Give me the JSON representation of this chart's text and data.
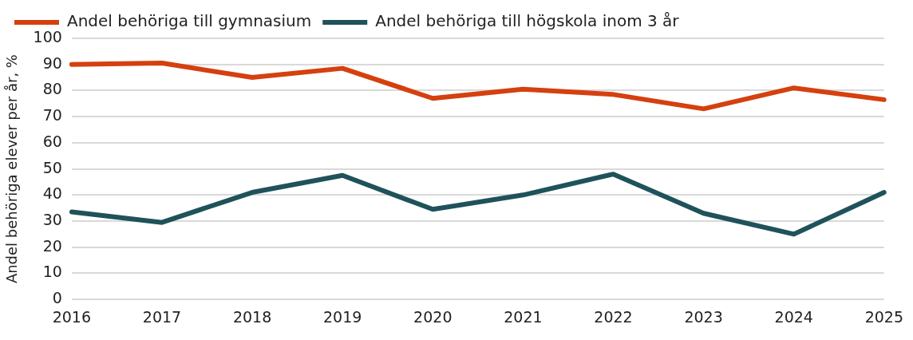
{
  "chart_data": {
    "type": "line",
    "ylabel": "Andel behöriga elever per år, %",
    "categories": [
      "2016",
      "2017",
      "2018",
      "2019",
      "2020",
      "2021",
      "2022",
      "2023",
      "2024",
      "2025"
    ],
    "series": [
      {
        "name": "Andel behöriga till gymnasium",
        "color": "#d5400f",
        "values": [
          90,
          90.5,
          85,
          88.5,
          77,
          80.5,
          78.5,
          73,
          81,
          76.5
        ]
      },
      {
        "name": "Andel behöriga till högskola inom 3 år",
        "color": "#1f525a",
        "values": [
          33.5,
          29.5,
          41,
          47.5,
          34.5,
          40,
          48,
          33,
          25,
          41
        ]
      }
    ],
    "ylim": [
      0,
      100
    ],
    "yticks": [
      0,
      10,
      20,
      30,
      40,
      50,
      60,
      70,
      80,
      90,
      100
    ],
    "grid": "y",
    "legend": "top left",
    "marker": "none",
    "line_style": "solid"
  }
}
